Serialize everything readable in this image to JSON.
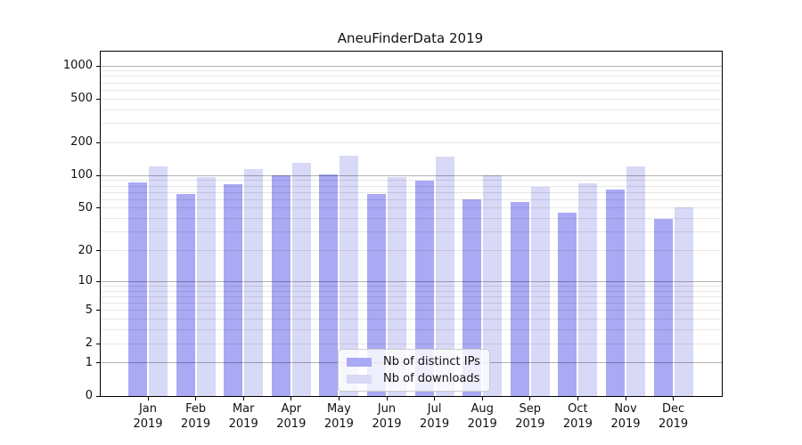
{
  "title": "AneuFinderData 2019",
  "chart_data": {
    "type": "bar",
    "categories": [
      "Jan",
      "Feb",
      "Mar",
      "Apr",
      "May",
      "Jun",
      "Jul",
      "Aug",
      "Sep",
      "Oct",
      "Nov",
      "Dec"
    ],
    "year_label": "2019",
    "series": [
      {
        "name": "Nb of distinct IPs",
        "color": "#a9a9f4",
        "values": [
          86,
          67,
          83,
          100,
          103,
          68,
          90,
          60,
          57,
          45,
          74,
          40
        ]
      },
      {
        "name": "Nb of downloads",
        "color": "#d8d8f7",
        "values": [
          122,
          97,
          115,
          130,
          152,
          97,
          150,
          100,
          79,
          85,
          120,
          51
        ]
      }
    ],
    "title": "AneuFinderData 2019",
    "xlabel": "",
    "ylabel": "",
    "yscale": "log1p",
    "ylim": [
      0,
      1350
    ],
    "y_ticks": [
      0,
      1,
      2,
      5,
      10,
      20,
      50,
      100,
      200,
      500,
      1000
    ],
    "y_major_gridlines": [
      1,
      10,
      100,
      1000
    ],
    "grid": true,
    "legend_position": "bottom-center"
  },
  "legend": {
    "items": [
      "Nb of distinct IPs",
      "Nb of downloads"
    ]
  },
  "colors": {
    "ips_bar": "#a9a9f4",
    "downloads_bar": "#d8d8f7",
    "major_grid": "#b2b2b2",
    "minor_grid": "#e7e7e7",
    "axis": "#000000",
    "text": "#111111",
    "background": "#ffffff"
  }
}
